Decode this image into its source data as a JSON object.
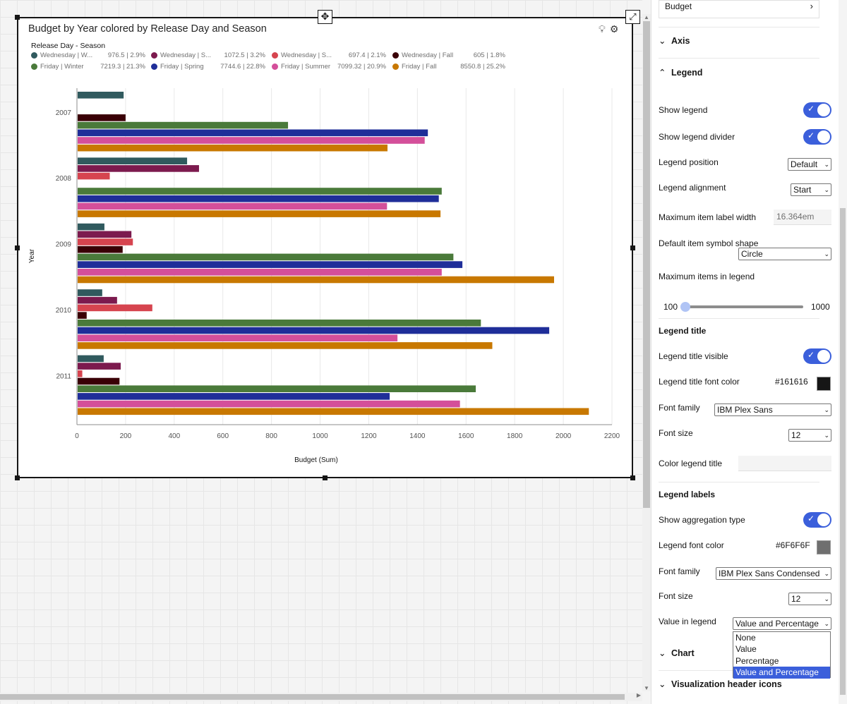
{
  "canvas": {
    "move_icon": "move-icon",
    "expand_icon": "expand-icon"
  },
  "widget": {
    "title": "Budget by Year colored by Release Day and Season",
    "header_icons": [
      "lightbulb-icon",
      "settings-icon"
    ],
    "legend": {
      "title": "Release Day - Season",
      "items": [
        {
          "label": "Wednesday | W...",
          "value": "976.5 | 2.9%",
          "color": "#305a5e"
        },
        {
          "label": "Wednesday | S...",
          "value": "1072.5 | 3.2%",
          "color": "#7c1a4e"
        },
        {
          "label": "Wednesday | S...",
          "value": "697.4 | 2.1%",
          "color": "#d6444f"
        },
        {
          "label": "Wednesday | Fall",
          "value": "605 | 1.8%",
          "color": "#3a0006"
        },
        {
          "label": "Friday | Winter",
          "value": "7219.3 | 21.3%",
          "color": "#4a7a3a"
        },
        {
          "label": "Friday | Spring",
          "value": "7744.6 | 22.8%",
          "color": "#1f2e99"
        },
        {
          "label": "Friday | Summer",
          "value": "7099.32 | 20.9%",
          "color": "#d44f9a"
        },
        {
          "label": "Friday | Fall",
          "value": "8550.8 | 25.2%",
          "color": "#c87800"
        }
      ]
    }
  },
  "chart_data": {
    "type": "bar",
    "orientation": "horizontal",
    "title": "Budget by Year colored by Release Day and Season",
    "xlabel": "Budget (Sum)",
    "ylabel": "Year",
    "xlim": [
      0,
      2200
    ],
    "xticks": [
      "0",
      "200",
      "400",
      "600",
      "800",
      "1000",
      "1200",
      "1400",
      "1600",
      "1800",
      "2000",
      "2200"
    ],
    "categories": [
      "2007",
      "2008",
      "2009",
      "2010",
      "2011"
    ],
    "grid": true,
    "legend_position": "top",
    "series": [
      {
        "name": "Wednesday | Winter",
        "color": "#305a5e",
        "values": [
          192,
          453,
          113,
          104,
          110
        ]
      },
      {
        "name": "Wednesday | Spring",
        "color": "#7c1a4e",
        "values": [
          null,
          502,
          224,
          165,
          180
        ]
      },
      {
        "name": "Wednesday | Summer",
        "color": "#d6444f",
        "values": [
          null,
          135,
          230,
          310,
          22
        ]
      },
      {
        "name": "Wednesday | Fall",
        "color": "#3a0006",
        "values": [
          200,
          null,
          188,
          40,
          175
        ]
      },
      {
        "name": "Friday | Winter",
        "color": "#4a7a3a",
        "values": [
          868,
          1500,
          1548,
          1661,
          1640
        ]
      },
      {
        "name": "Friday | Spring",
        "color": "#1f2e99",
        "values": [
          1443,
          1488,
          1585,
          1942,
          1286
        ]
      },
      {
        "name": "Friday | Summer",
        "color": "#d44f9a",
        "values": [
          1430,
          1275,
          1500,
          1318,
          1575
        ]
      },
      {
        "name": "Friday | Fall",
        "color": "#c87800",
        "values": [
          1277,
          1495,
          1962,
          1708,
          2105
        ]
      }
    ]
  },
  "panel": {
    "budget_label": "Budget",
    "axis_section": "Axis",
    "legend_section": "Legend",
    "show_legend": "Show legend",
    "show_legend_divider": "Show legend divider",
    "legend_position": {
      "label": "Legend position",
      "value": "Default"
    },
    "legend_alignment": {
      "label": "Legend alignment",
      "value": "Start"
    },
    "max_item_label_width": {
      "label": "Maximum item label width",
      "value": "16.364em"
    },
    "default_symbol_shape": {
      "label": "Default item symbol shape",
      "value": "Circle"
    },
    "max_items": {
      "label": "Maximum items in legend",
      "min": "100",
      "max": "1000",
      "value": 100
    },
    "legend_title_header": "Legend title",
    "legend_title_visible": "Legend title visible",
    "legend_title_font_color": {
      "label": "Legend title font color",
      "value": "#161616"
    },
    "title_font_family": {
      "label": "Font family",
      "value": "IBM Plex Sans"
    },
    "title_font_size": {
      "label": "Font size",
      "value": "12"
    },
    "color_legend_title": {
      "label": "Color legend title",
      "value": ""
    },
    "legend_labels_header": "Legend labels",
    "show_aggregation_type": "Show aggregation type",
    "legend_font_color": {
      "label": "Legend font color",
      "value": "#6F6F6F"
    },
    "labels_font_family": {
      "label": "Font family",
      "value": "IBM Plex Sans Condensed"
    },
    "labels_font_size": {
      "label": "Font size",
      "value": "12"
    },
    "value_in_legend": {
      "label": "Value in legend",
      "value": "Value and Percentage",
      "options": [
        "None",
        "Value",
        "Percentage",
        "Value and Percentage"
      ]
    },
    "chart_section": "Chart",
    "viz_header_icons_section": "Visualization header icons"
  }
}
